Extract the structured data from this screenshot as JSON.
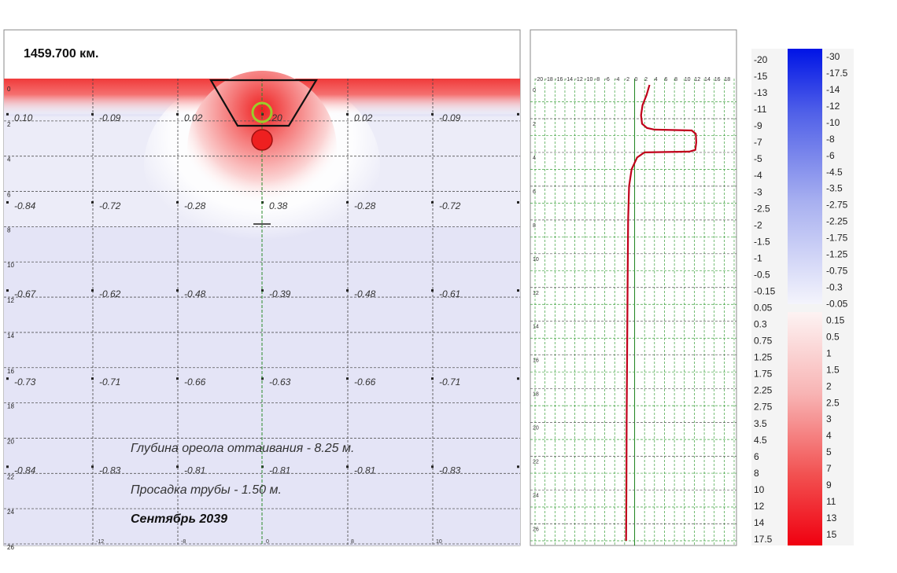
{
  "title": "1459.700 км.",
  "annotations": {
    "thaw_depth": "Глубина ореола оттаивания - 8.25 м.",
    "pipe_sag": "Просадка трубы - 1.50 м.",
    "date": "Сентябрь 2039"
  },
  "chart_data": [
    {
      "type": "heatmap",
      "title": "1459.700 км.",
      "depth_labels": [
        "0",
        "2",
        "4",
        "6",
        "8",
        "10",
        "12",
        "14",
        "16",
        "18",
        "20",
        "22",
        "24",
        "26"
      ],
      "x_labels": [
        "-12",
        "-8",
        "0",
        "8",
        "10"
      ],
      "rows": [
        {
          "depth": 2,
          "values": [
            "0.10",
            "-0.09",
            "0.02",
            ".20",
            "0.02",
            "-0.09"
          ]
        },
        {
          "depth": 7,
          "values": [
            "-0.84",
            "-0.72",
            "-0.28",
            "0.38",
            "-0.28",
            "-0.72"
          ]
        },
        {
          "depth": 12,
          "values": [
            "-0.67",
            "-0.62",
            "-0.48",
            "-0.39",
            "-0.48",
            "-0.61"
          ]
        },
        {
          "depth": 17,
          "values": [
            "-0.73",
            "-0.71",
            "-0.66",
            "-0.63",
            "-0.66",
            "-0.71"
          ]
        },
        {
          "depth": 22,
          "values": [
            "-0.84",
            "-0.83",
            "-0.81",
            "-0.81",
            "-0.81",
            "-0.83"
          ]
        }
      ]
    },
    {
      "type": "line",
      "x_tick_labels": [
        "-20",
        "-18",
        "-16",
        "-14",
        "-12",
        "-10",
        "-8",
        "-6",
        "-4",
        "-2",
        "0",
        "2",
        "4",
        "6",
        "8",
        "10",
        "12",
        "14",
        "16",
        "18"
      ],
      "depth_labels": [
        "0",
        "2",
        "4",
        "6",
        "8",
        "10",
        "12",
        "14",
        "16",
        "18",
        "20",
        "22",
        "24",
        "26"
      ],
      "xlim": [
        -20,
        20
      ],
      "ylim": [
        0,
        27
      ],
      "series": [
        {
          "color": "#c0001a",
          "points": [
            [
              3.0,
              0
            ],
            [
              2.4,
              0.6
            ],
            [
              1.6,
              1.2
            ],
            [
              1.3,
              1.8
            ],
            [
              1.5,
              2.3
            ],
            [
              2.5,
              2.55
            ],
            [
              4.0,
              2.65
            ],
            [
              11.5,
              2.7
            ],
            [
              12.3,
              2.9
            ],
            [
              12.4,
              3.4
            ],
            [
              12.2,
              3.85
            ],
            [
              11.0,
              3.95
            ],
            [
              2.0,
              4.0
            ],
            [
              0.5,
              4.3
            ],
            [
              -0.6,
              5.0
            ],
            [
              -1.1,
              6.0
            ],
            [
              -1.3,
              8.0
            ],
            [
              -1.4,
              12.0
            ],
            [
              -1.5,
              16.0
            ],
            [
              -1.6,
              20.0
            ],
            [
              -1.65,
              24.0
            ],
            [
              -1.7,
              27.0
            ]
          ]
        }
      ]
    },
    {
      "type": "colorbar",
      "left_labels": [
        "-20",
        "-15",
        "-13",
        "-11",
        "-9",
        "-7",
        "-5",
        "-4",
        "-3",
        "-2.5",
        "-2",
        "-1.5",
        "-1",
        "-0.5",
        "-0.15",
        "0.05",
        "0.3",
        "0.75",
        "1.25",
        "1.75",
        "2.25",
        "2.75",
        "3.5",
        "4.5",
        "6",
        "8",
        "10",
        "12",
        "14",
        "17.5"
      ],
      "right_labels": [
        "-30",
        "-17.5",
        "-14",
        "-12",
        "-10",
        "-8",
        "-6",
        "-4.5",
        "-3.5",
        "-2.75",
        "-2.25",
        "-1.75",
        "-1.25",
        "-0.75",
        "-0.3",
        "-0.05",
        "0.15",
        "0.5",
        "1",
        "1.5",
        "2",
        "2.5",
        "3",
        "4",
        "5",
        "7",
        "9",
        "11",
        "13",
        "15"
      ],
      "cold_color": "#0018e0",
      "warm_color": "#f00010"
    }
  ]
}
